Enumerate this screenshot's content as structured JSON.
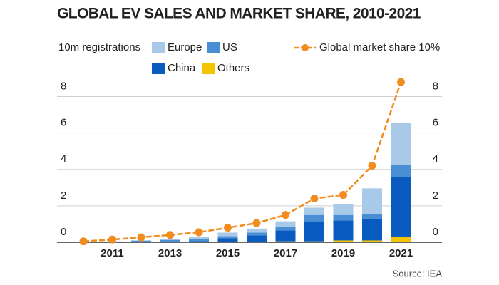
{
  "chart_data": {
    "type": "stacked-bar-line",
    "title": "GLOBAL EV SALES AND MARKET SHARE, 2010-2021",
    "y_label": "10m registrations",
    "source": "Source: IEA",
    "categories": [
      null,
      "2011",
      null,
      "2013",
      null,
      "2015",
      null,
      "2017",
      null,
      "2019",
      null,
      "2021"
    ],
    "series": [
      {
        "name": "Europe",
        "color": "#a9c9e8",
        "values": [
          0.003,
          0.012,
          0.03,
          0.07,
          0.1,
          0.2,
          0.22,
          0.3,
          0.4,
          0.6,
          1.4,
          2.3
        ]
      },
      {
        "name": "US",
        "color": "#4a8fd4",
        "values": [
          0.002,
          0.018,
          0.05,
          0.1,
          0.12,
          0.11,
          0.16,
          0.2,
          0.35,
          0.3,
          0.3,
          0.65
        ]
      },
      {
        "name": "China",
        "color": "#0a5bbf",
        "values": [
          0.001,
          0.005,
          0.01,
          0.02,
          0.05,
          0.2,
          0.35,
          0.6,
          1.1,
          1.1,
          1.16,
          3.3
        ]
      },
      {
        "name": "Others",
        "color": "#f5c400",
        "values": [
          0.004,
          0.015,
          0.02,
          0.01,
          0.02,
          0.02,
          0.02,
          0.05,
          0.05,
          0.1,
          0.1,
          0.3
        ]
      },
      {
        "name": "Global market share 10%",
        "color": "#f28c1e",
        "axis": "y2",
        "values": [
          0.05,
          0.15,
          0.27,
          0.4,
          0.55,
          0.8,
          1.05,
          1.5,
          2.4,
          2.6,
          4.2,
          8.8
        ]
      }
    ],
    "ylim": [
      0,
      9
    ],
    "yticks": [
      0,
      2,
      4,
      6,
      8
    ],
    "y2lim": [
      0,
      9
    ],
    "y2ticks": [
      0,
      2,
      4,
      6,
      8
    ],
    "grid": true
  }
}
